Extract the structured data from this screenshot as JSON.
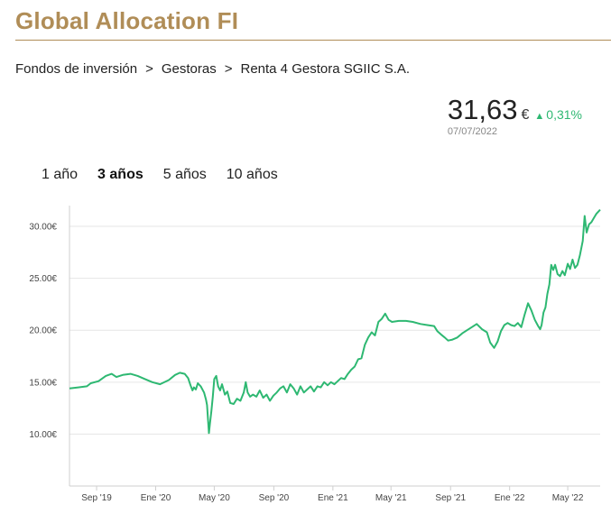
{
  "page": {
    "title": "Global Allocation FI",
    "breadcrumb": [
      "Fondos de inversión",
      "Gestoras",
      "Renta 4 Gestora SGIIC S.A."
    ],
    "breadcrumb_separator": ">"
  },
  "quote": {
    "price": "31,63",
    "currency": "€",
    "change": "0,31%",
    "date": "07/07/2022",
    "change_color": "#2eb872"
  },
  "tabs": [
    {
      "label": "1 año",
      "active": false
    },
    {
      "label": "3 años",
      "active": true
    },
    {
      "label": "5 años",
      "active": false
    },
    {
      "label": "10 años",
      "active": false
    }
  ],
  "chart_data": {
    "type": "line",
    "series_color": "#2eb872",
    "grid": true,
    "ylim": [
      5,
      32
    ],
    "yticks": [
      {
        "value": 10,
        "label": "10.00€"
      },
      {
        "value": 15,
        "label": "15.00€"
      },
      {
        "value": 20,
        "label": "20.00€"
      },
      {
        "value": 25,
        "label": "25.00€"
      },
      {
        "value": 30,
        "label": "30.00€"
      }
    ],
    "xlim": [
      "2019-07-07",
      "2022-07-07"
    ],
    "xticks": [
      {
        "value": "2019-09-01",
        "label": "Sep '19"
      },
      {
        "value": "2020-01-01",
        "label": "Ene '20"
      },
      {
        "value": "2020-05-01",
        "label": "May '20"
      },
      {
        "value": "2020-09-01",
        "label": "Sep '20"
      },
      {
        "value": "2021-01-01",
        "label": "Ene '21"
      },
      {
        "value": "2021-05-01",
        "label": "May '21"
      },
      {
        "value": "2021-09-01",
        "label": "Sep '21"
      },
      {
        "value": "2022-01-01",
        "label": "Ene '22"
      },
      {
        "value": "2022-05-01",
        "label": "May '22"
      }
    ],
    "points": [
      [
        "2019-07-07",
        14.4
      ],
      [
        "2019-07-25",
        14.5
      ],
      [
        "2019-08-12",
        14.6
      ],
      [
        "2019-08-20",
        14.9
      ],
      [
        "2019-09-05",
        15.1
      ],
      [
        "2019-09-20",
        15.6
      ],
      [
        "2019-10-02",
        15.8
      ],
      [
        "2019-10-12",
        15.5
      ],
      [
        "2019-10-25",
        15.7
      ],
      [
        "2019-11-10",
        15.8
      ],
      [
        "2019-11-25",
        15.6
      ],
      [
        "2019-12-10",
        15.3
      ],
      [
        "2019-12-25",
        15.0
      ],
      [
        "2020-01-10",
        14.8
      ],
      [
        "2020-01-28",
        15.2
      ],
      [
        "2020-02-10",
        15.7
      ],
      [
        "2020-02-20",
        15.9
      ],
      [
        "2020-03-01",
        15.8
      ],
      [
        "2020-03-08",
        15.4
      ],
      [
        "2020-03-13",
        14.7
      ],
      [
        "2020-03-17",
        14.2
      ],
      [
        "2020-03-20",
        14.5
      ],
      [
        "2020-03-24",
        14.3
      ],
      [
        "2020-03-28",
        14.9
      ],
      [
        "2020-04-03",
        14.6
      ],
      [
        "2020-04-10",
        14.0
      ],
      [
        "2020-04-14",
        13.3
      ],
      [
        "2020-04-16",
        12.8
      ],
      [
        "2020-04-18",
        11.5
      ],
      [
        "2020-04-20",
        10.1
      ],
      [
        "2020-04-22",
        11.0
      ],
      [
        "2020-04-25",
        12.2
      ],
      [
        "2020-04-28",
        13.6
      ],
      [
        "2020-05-01",
        15.3
      ],
      [
        "2020-05-05",
        15.6
      ],
      [
        "2020-05-09",
        14.6
      ],
      [
        "2020-05-13",
        14.2
      ],
      [
        "2020-05-17",
        14.8
      ],
      [
        "2020-05-23",
        13.8
      ],
      [
        "2020-05-28",
        14.1
      ],
      [
        "2020-06-03",
        13.0
      ],
      [
        "2020-06-10",
        12.9
      ],
      [
        "2020-06-17",
        13.4
      ],
      [
        "2020-06-24",
        13.2
      ],
      [
        "2020-07-01",
        14.0
      ],
      [
        "2020-07-05",
        15.0
      ],
      [
        "2020-07-09",
        14.0
      ],
      [
        "2020-07-14",
        13.6
      ],
      [
        "2020-07-20",
        13.8
      ],
      [
        "2020-07-27",
        13.6
      ],
      [
        "2020-08-03",
        14.2
      ],
      [
        "2020-08-10",
        13.5
      ],
      [
        "2020-08-17",
        13.8
      ],
      [
        "2020-08-24",
        13.2
      ],
      [
        "2020-08-31",
        13.7
      ],
      [
        "2020-09-07",
        14.0
      ],
      [
        "2020-09-14",
        14.4
      ],
      [
        "2020-09-21",
        14.6
      ],
      [
        "2020-09-28",
        14.0
      ],
      [
        "2020-10-05",
        14.8
      ],
      [
        "2020-10-12",
        14.4
      ],
      [
        "2020-10-19",
        13.8
      ],
      [
        "2020-10-26",
        14.6
      ],
      [
        "2020-11-02",
        14.0
      ],
      [
        "2020-11-09",
        14.3
      ],
      [
        "2020-11-16",
        14.6
      ],
      [
        "2020-11-23",
        14.1
      ],
      [
        "2020-11-30",
        14.6
      ],
      [
        "2020-12-07",
        14.5
      ],
      [
        "2020-12-14",
        15.0
      ],
      [
        "2020-12-21",
        14.7
      ],
      [
        "2020-12-28",
        15.0
      ],
      [
        "2021-01-04",
        14.8
      ],
      [
        "2021-01-11",
        15.1
      ],
      [
        "2021-01-18",
        15.4
      ],
      [
        "2021-01-25",
        15.3
      ],
      [
        "2021-02-01",
        15.8
      ],
      [
        "2021-02-08",
        16.2
      ],
      [
        "2021-02-15",
        16.5
      ],
      [
        "2021-02-22",
        17.2
      ],
      [
        "2021-03-01",
        17.3
      ],
      [
        "2021-03-08",
        18.6
      ],
      [
        "2021-03-15",
        19.3
      ],
      [
        "2021-03-22",
        19.8
      ],
      [
        "2021-03-29",
        19.5
      ],
      [
        "2021-04-05",
        20.8
      ],
      [
        "2021-04-12",
        21.1
      ],
      [
        "2021-04-19",
        21.6
      ],
      [
        "2021-04-26",
        21.0
      ],
      [
        "2021-05-03",
        20.8
      ],
      [
        "2021-05-17",
        20.9
      ],
      [
        "2021-06-01",
        20.9
      ],
      [
        "2021-06-15",
        20.8
      ],
      [
        "2021-07-01",
        20.6
      ],
      [
        "2021-07-15",
        20.5
      ],
      [
        "2021-07-29",
        20.4
      ],
      [
        "2021-08-05",
        19.9
      ],
      [
        "2021-08-12",
        19.6
      ],
      [
        "2021-08-20",
        19.3
      ],
      [
        "2021-08-27",
        19.0
      ],
      [
        "2021-09-05",
        19.1
      ],
      [
        "2021-09-15",
        19.3
      ],
      [
        "2021-09-25",
        19.7
      ],
      [
        "2021-10-05",
        20.0
      ],
      [
        "2021-10-15",
        20.3
      ],
      [
        "2021-10-25",
        20.6
      ],
      [
        "2021-11-05",
        20.1
      ],
      [
        "2021-11-15",
        19.8
      ],
      [
        "2021-11-22",
        18.8
      ],
      [
        "2021-11-30",
        18.3
      ],
      [
        "2021-12-07",
        18.9
      ],
      [
        "2021-12-14",
        19.9
      ],
      [
        "2021-12-21",
        20.5
      ],
      [
        "2021-12-28",
        20.7
      ],
      [
        "2022-01-04",
        20.5
      ],
      [
        "2022-01-11",
        20.4
      ],
      [
        "2022-01-18",
        20.7
      ],
      [
        "2022-01-25",
        20.3
      ],
      [
        "2022-02-01",
        21.5
      ],
      [
        "2022-02-08",
        22.6
      ],
      [
        "2022-02-15",
        21.9
      ],
      [
        "2022-02-22",
        21.0
      ],
      [
        "2022-03-01",
        20.4
      ],
      [
        "2022-03-05",
        20.1
      ],
      [
        "2022-03-08",
        20.5
      ],
      [
        "2022-03-12",
        21.7
      ],
      [
        "2022-03-16",
        22.2
      ],
      [
        "2022-03-20",
        23.5
      ],
      [
        "2022-03-24",
        24.4
      ],
      [
        "2022-03-28",
        26.3
      ],
      [
        "2022-04-01",
        25.8
      ],
      [
        "2022-04-05",
        26.3
      ],
      [
        "2022-04-10",
        25.4
      ],
      [
        "2022-04-15",
        25.2
      ],
      [
        "2022-04-20",
        25.7
      ],
      [
        "2022-04-25",
        25.3
      ],
      [
        "2022-05-01",
        26.4
      ],
      [
        "2022-05-06",
        25.9
      ],
      [
        "2022-05-11",
        26.8
      ],
      [
        "2022-05-16",
        26.0
      ],
      [
        "2022-05-21",
        26.3
      ],
      [
        "2022-05-26",
        27.2
      ],
      [
        "2022-06-01",
        28.6
      ],
      [
        "2022-06-05",
        31.0
      ],
      [
        "2022-06-09",
        29.4
      ],
      [
        "2022-06-14",
        30.2
      ],
      [
        "2022-06-19",
        30.4
      ],
      [
        "2022-06-24",
        30.8
      ],
      [
        "2022-06-29",
        31.2
      ],
      [
        "2022-07-07",
        31.6
      ]
    ]
  }
}
